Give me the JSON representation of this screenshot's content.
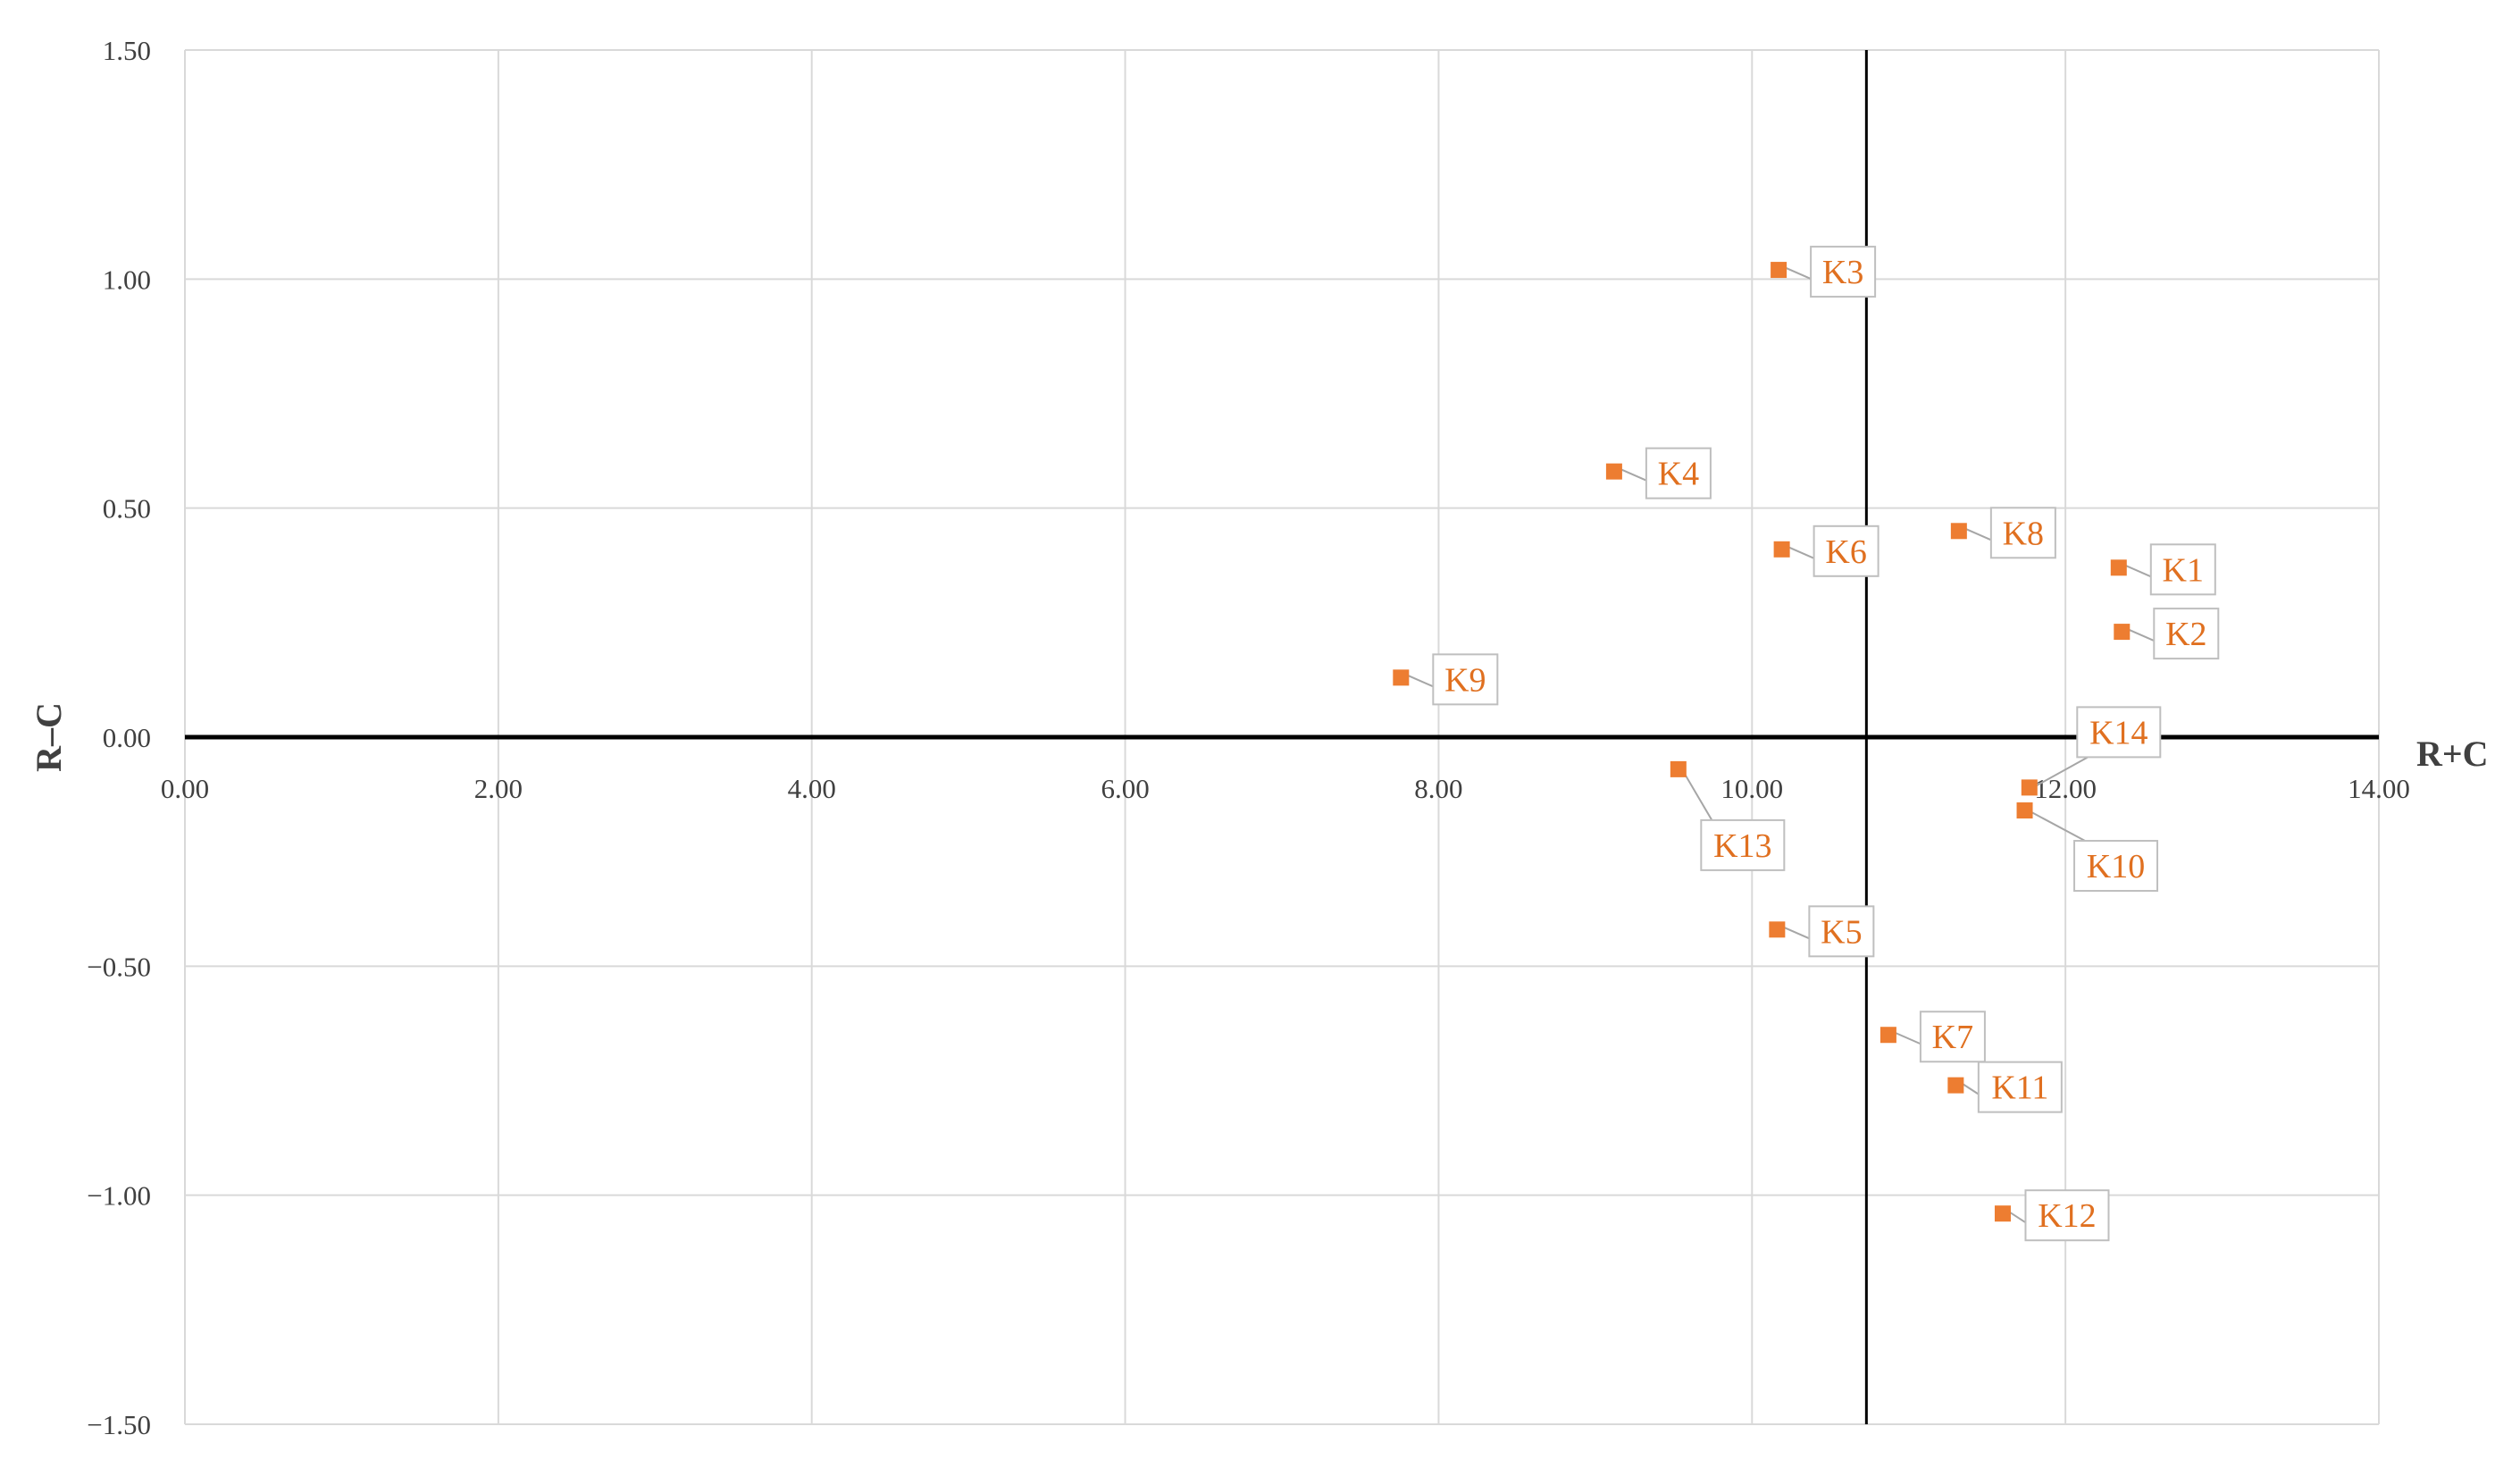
{
  "chart_data": {
    "type": "scatter",
    "title": "",
    "xlabel": "R+C",
    "ylabel": "R–C",
    "xlim": [
      0,
      14
    ],
    "ylim": [
      -1.5,
      1.5
    ],
    "x_ticks": [
      0,
      2,
      4,
      6,
      8,
      10,
      12,
      14
    ],
    "x_tick_labels": [
      "0.00",
      "2.00",
      "4.00",
      "6.00",
      "8.00",
      "10.00",
      "12.00",
      "14.00"
    ],
    "y_ticks": [
      1.5,
      1.0,
      0.5,
      0.0,
      -0.5,
      -1.0,
      -1.5
    ],
    "y_tick_labels": [
      "1.50",
      "1.00",
      "0.50",
      "0.00",
      "−0.50",
      "−1.00",
      "−1.50"
    ],
    "grid": true,
    "mean_line_x": 10.73,
    "zero_line_y": 0,
    "marker_color": "#ed7d31",
    "label_color": "#e07020",
    "points": [
      {
        "label": "K1",
        "x": 12.34,
        "y": 0.37
      },
      {
        "label": "K2",
        "x": 12.36,
        "y": 0.23
      },
      {
        "label": "K3",
        "x": 10.17,
        "y": 1.02
      },
      {
        "label": "K4",
        "x": 9.12,
        "y": 0.58
      },
      {
        "label": "K5",
        "x": 10.16,
        "y": -0.42
      },
      {
        "label": "K6",
        "x": 10.19,
        "y": 0.41
      },
      {
        "label": "K7",
        "x": 10.87,
        "y": -0.65
      },
      {
        "label": "K8",
        "x": 11.32,
        "y": 0.45
      },
      {
        "label": "K9",
        "x": 7.76,
        "y": 0.13
      },
      {
        "label": "K10",
        "x": 11.74,
        "y": -0.16
      },
      {
        "label": "K11",
        "x": 11.3,
        "y": -0.76
      },
      {
        "label": "K12",
        "x": 11.6,
        "y": -1.04
      },
      {
        "label": "K13",
        "x": 9.53,
        "y": -0.07
      },
      {
        "label": "K14",
        "x": 11.77,
        "y": -0.11
      }
    ]
  }
}
